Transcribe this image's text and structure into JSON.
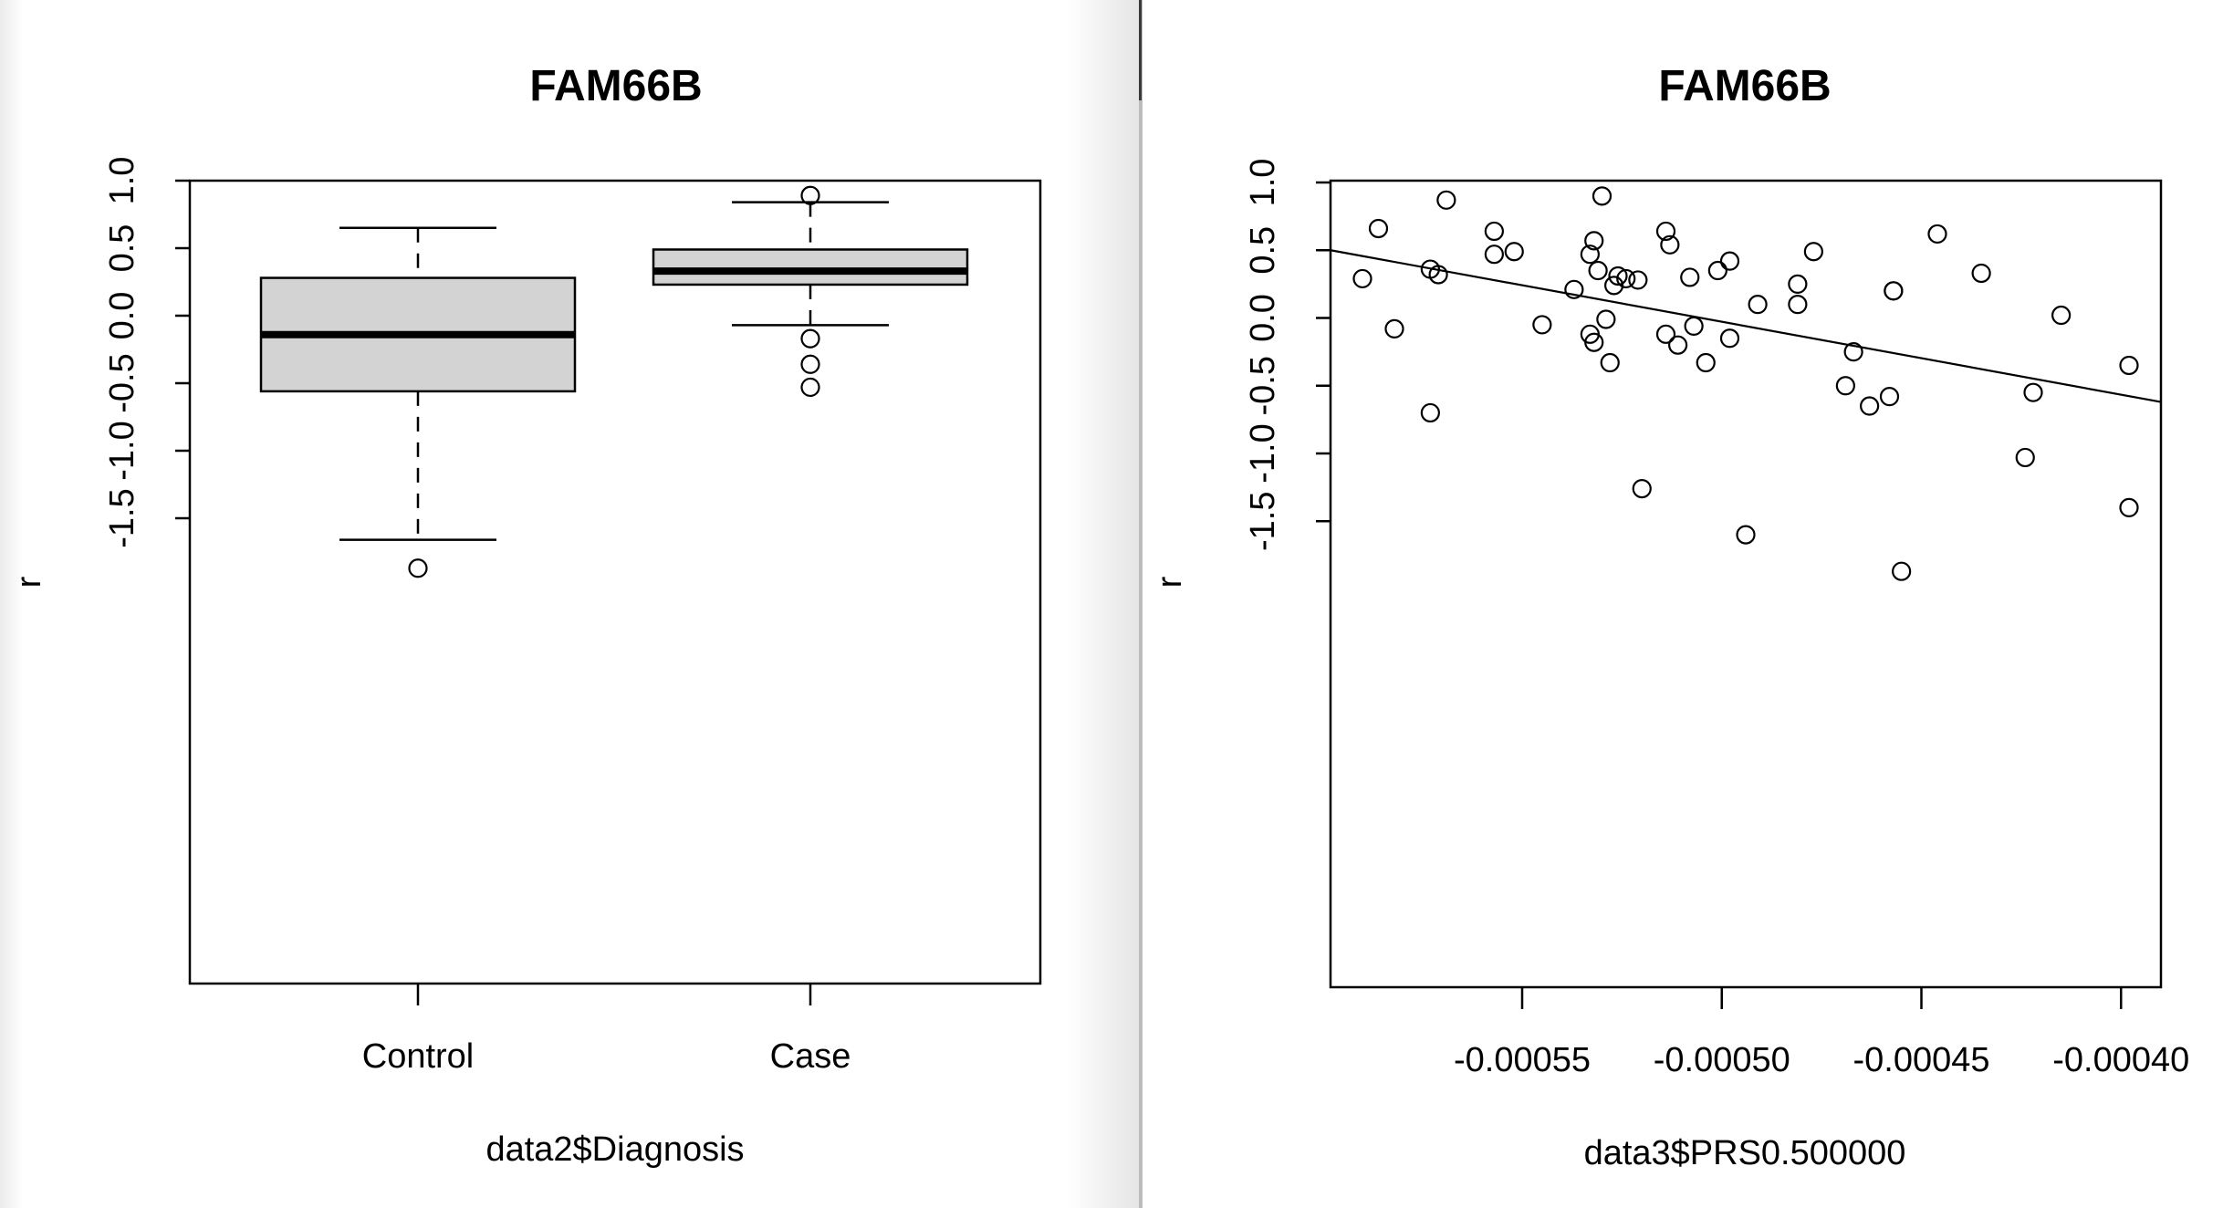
{
  "chart_data": [
    {
      "type": "box",
      "title": "FAM66B",
      "xlabel": "data2$Diagnosis",
      "ylabel": "r",
      "categories": [
        "Control",
        "Case"
      ],
      "ylim": [
        -1.95,
        1.0
      ],
      "yticks": [
        1.0,
        0.5,
        0.0,
        -0.5,
        -1.0,
        -1.5
      ],
      "ytick_labels": [
        "1.0",
        "0.5",
        "0.0",
        "-0.5",
        "-1.0",
        "-1.5"
      ],
      "boxes": [
        {
          "name": "Control",
          "whisker_low": -1.66,
          "q1": -0.56,
          "median": -0.14,
          "q3": 0.28,
          "whisker_high": 0.65,
          "outliers": [
            -1.87
          ]
        },
        {
          "name": "Case",
          "whisker_low": -0.07,
          "q1": 0.23,
          "median": 0.33,
          "q3": 0.49,
          "whisker_high": 0.84,
          "outliers": [
            0.89,
            -0.17,
            -0.36,
            -0.53
          ]
        }
      ],
      "box_fill": "#d3d3d3"
    },
    {
      "type": "scatter",
      "title": "FAM66B",
      "xlabel": "data3$PRS0.500000",
      "ylabel": "r",
      "xlim": [
        -0.000598,
        -0.00039
      ],
      "ylim": [
        -1.95,
        1.0
      ],
      "xticks": [
        -0.00055,
        -0.0005,
        -0.00045,
        -0.0004
      ],
      "xtick_labels": [
        "-0.00055",
        "-0.00050",
        "-0.00045",
        "-0.00040"
      ],
      "yticks": [
        1.0,
        0.5,
        0.0,
        -0.5,
        -1.0,
        -1.5
      ],
      "ytick_labels": [
        "1.0",
        "0.5",
        "0.0",
        "-0.5",
        "-1.0",
        "-1.5"
      ],
      "trend_line": {
        "x": [
          -0.000598,
          -0.00039
        ],
        "y": [
          0.5,
          -0.62
        ]
      },
      "points": [
        {
          "x": -0.00059,
          "y": 0.29
        },
        {
          "x": -0.000586,
          "y": 0.66
        },
        {
          "x": -0.000582,
          "y": -0.08
        },
        {
          "x": -0.000573,
          "y": 0.36
        },
        {
          "x": -0.000571,
          "y": 0.32
        },
        {
          "x": -0.000573,
          "y": -0.7
        },
        {
          "x": -0.000569,
          "y": 0.87
        },
        {
          "x": -0.000557,
          "y": 0.64
        },
        {
          "x": -0.000557,
          "y": 0.47
        },
        {
          "x": -0.000552,
          "y": 0.49
        },
        {
          "x": -0.000545,
          "y": -0.05
        },
        {
          "x": -0.000537,
          "y": 0.21
        },
        {
          "x": -0.000533,
          "y": 0.47
        },
        {
          "x": -0.000532,
          "y": 0.57
        },
        {
          "x": -0.000533,
          "y": -0.12
        },
        {
          "x": -0.000532,
          "y": -0.18
        },
        {
          "x": -0.000531,
          "y": 0.35
        },
        {
          "x": -0.00053,
          "y": 0.9
        },
        {
          "x": -0.000529,
          "y": -0.01
        },
        {
          "x": -0.000528,
          "y": -0.33
        },
        {
          "x": -0.000527,
          "y": 0.24
        },
        {
          "x": -0.000526,
          "y": 0.31
        },
        {
          "x": -0.000524,
          "y": 0.29
        },
        {
          "x": -0.000521,
          "y": 0.28
        },
        {
          "x": -0.00052,
          "y": -1.26
        },
        {
          "x": -0.000514,
          "y": 0.64
        },
        {
          "x": -0.000514,
          "y": -0.12
        },
        {
          "x": -0.000513,
          "y": 0.54
        },
        {
          "x": -0.000511,
          "y": -0.2
        },
        {
          "x": -0.000508,
          "y": 0.3
        },
        {
          "x": -0.000507,
          "y": -0.06
        },
        {
          "x": -0.000504,
          "y": -0.33
        },
        {
          "x": -0.000501,
          "y": 0.35
        },
        {
          "x": -0.000498,
          "y": 0.42
        },
        {
          "x": -0.000498,
          "y": -0.15
        },
        {
          "x": -0.000494,
          "y": -1.6
        },
        {
          "x": -0.000491,
          "y": 0.1
        },
        {
          "x": -0.000481,
          "y": 0.25
        },
        {
          "x": -0.000481,
          "y": 0.1
        },
        {
          "x": -0.000477,
          "y": 0.49
        },
        {
          "x": -0.000469,
          "y": -0.5
        },
        {
          "x": -0.000467,
          "y": -0.25
        },
        {
          "x": -0.000463,
          "y": -0.65
        },
        {
          "x": -0.000458,
          "y": -0.58
        },
        {
          "x": -0.000457,
          "y": 0.2
        },
        {
          "x": -0.000457,
          "y": 0.2
        },
        {
          "x": -0.000455,
          "y": -1.87
        },
        {
          "x": -0.000446,
          "y": 0.62
        },
        {
          "x": -0.000435,
          "y": 0.33
        },
        {
          "x": -0.000424,
          "y": -1.03
        },
        {
          "x": -0.000422,
          "y": -0.55
        },
        {
          "x": -0.000415,
          "y": 0.02
        },
        {
          "x": -0.000398,
          "y": -0.35
        },
        {
          "x": -0.000398,
          "y": -1.4
        }
      ]
    }
  ]
}
